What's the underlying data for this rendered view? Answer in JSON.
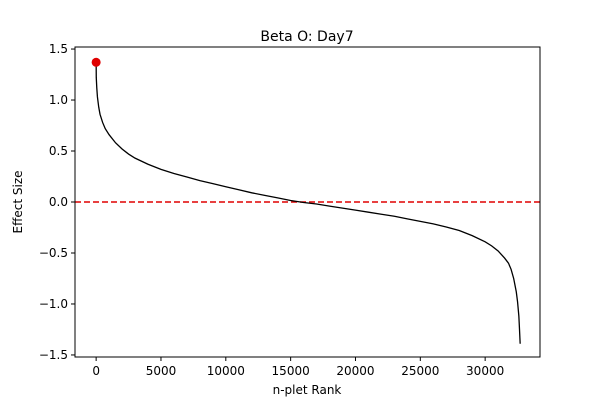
{
  "chart_data": {
    "type": "line",
    "title": "Beta O: Day7",
    "xlabel": "n-plet Rank",
    "ylabel": "Effect Size",
    "xlim": [
      -1630,
      34230
    ],
    "ylim": [
      -1.52,
      1.52
    ],
    "xticks": [
      0,
      5000,
      10000,
      15000,
      20000,
      25000,
      30000
    ],
    "yticks": [
      -1.5,
      -1.0,
      -0.5,
      0.0,
      0.5,
      1.0,
      1.5
    ],
    "xtick_labels": [
      "0",
      "5000",
      "10000",
      "15000",
      "20000",
      "25000",
      "30000"
    ],
    "ytick_labels": [
      "−1.5",
      "−1.0",
      "−0.5",
      "0.0",
      "0.5",
      "1.0",
      "1.5"
    ],
    "grid": false,
    "series": [
      {
        "color": "#000000",
        "x": [
          0,
          10,
          50,
          100,
          200,
          300,
          500,
          700,
          1000,
          1500,
          2000,
          2500,
          3000,
          4000,
          5000,
          6000,
          7000,
          8000,
          9000,
          10000,
          11000,
          12000,
          13000,
          14000,
          15000,
          16000,
          17000,
          18000,
          19000,
          20000,
          21000,
          22000,
          23000,
          24000,
          25000,
          26000,
          27000,
          28000,
          29000,
          30000,
          30500,
          31000,
          31500,
          31800,
          32000,
          32200,
          32400,
          32500,
          32600,
          32650,
          32700
        ],
        "y": [
          1.37,
          1.22,
          1.12,
          1.03,
          0.93,
          0.86,
          0.78,
          0.72,
          0.66,
          0.58,
          0.52,
          0.47,
          0.43,
          0.37,
          0.32,
          0.28,
          0.245,
          0.21,
          0.18,
          0.15,
          0.12,
          0.09,
          0.065,
          0.04,
          0.015,
          -0.005,
          -0.02,
          -0.04,
          -0.06,
          -0.08,
          -0.1,
          -0.12,
          -0.14,
          -0.165,
          -0.19,
          -0.215,
          -0.245,
          -0.28,
          -0.33,
          -0.39,
          -0.43,
          -0.48,
          -0.55,
          -0.6,
          -0.66,
          -0.75,
          -0.88,
          -0.98,
          -1.12,
          -1.25,
          -1.39
        ]
      }
    ],
    "annotations": {
      "max_point": {
        "x": 0,
        "y": 1.37,
        "color": "#e00000"
      },
      "zero_line": {
        "y": 0.0,
        "color": "#e00000",
        "style": "dashed"
      }
    }
  }
}
